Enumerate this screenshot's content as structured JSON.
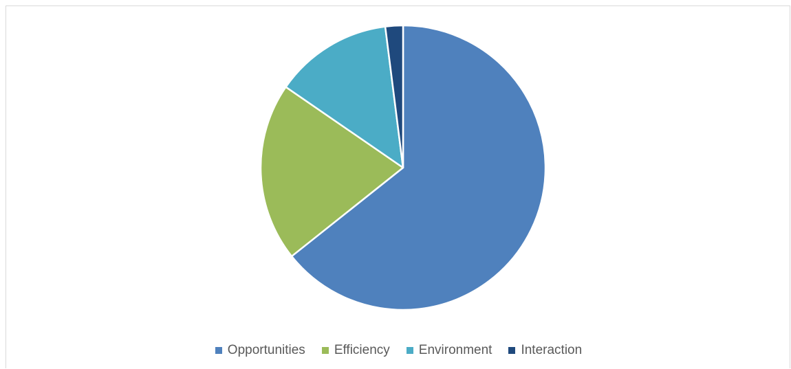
{
  "chart_data": {
    "type": "pie",
    "title": "",
    "categories": [
      "Opportunities",
      "Efficiency",
      "Environment",
      "Interaction"
    ],
    "values": [
      64.3,
      20.3,
      13.4,
      2.0
    ],
    "colors": [
      "#4f81bd",
      "#9bbb59",
      "#4bacc6",
      "#1f497d"
    ],
    "start_angle_deg": 0,
    "direction": "clockwise",
    "legend_position": "bottom"
  }
}
